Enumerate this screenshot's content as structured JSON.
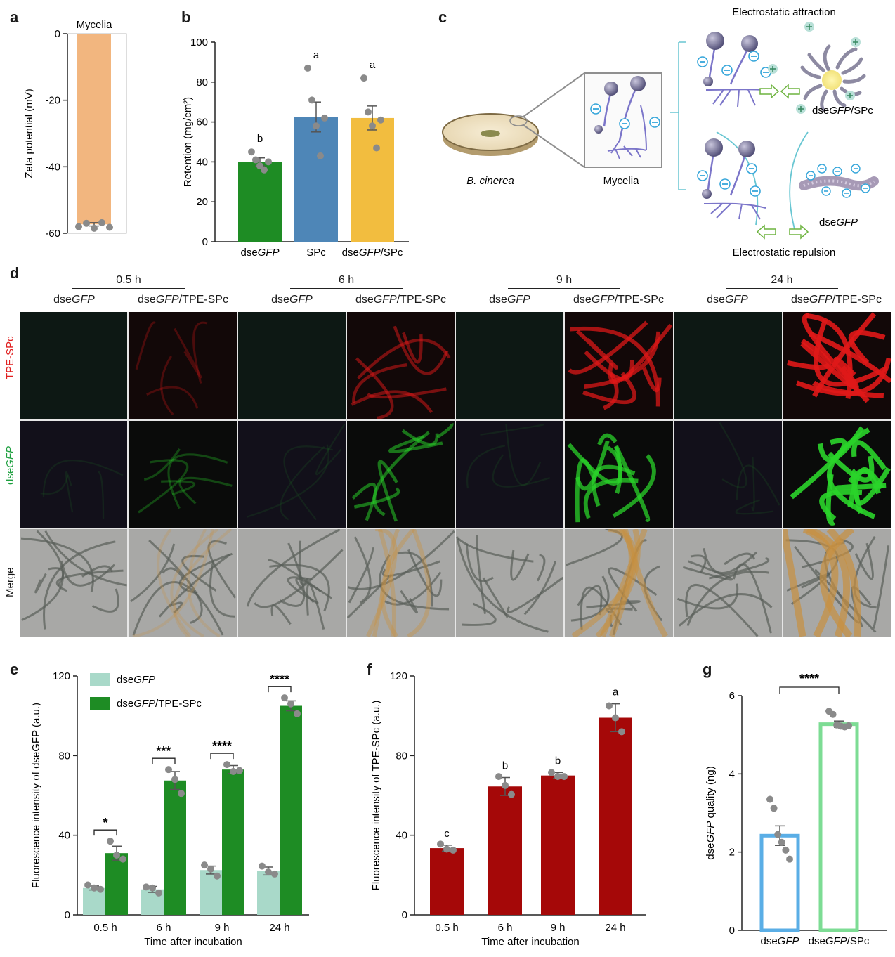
{
  "panels": {
    "a": "a",
    "b": "b",
    "c": "c",
    "d": "d",
    "e": "e",
    "f": "f",
    "g": "g"
  },
  "chart_data": [
    {
      "panel": "a",
      "type": "bar",
      "title": "Mycelia",
      "ylabel": "Zeta potential (mV)",
      "ylim": [
        -60,
        0
      ],
      "yticks": [
        "0",
        "-20",
        "-40",
        "-60"
      ],
      "values": [
        -57.3
      ],
      "points": [
        -58.0,
        -57.0,
        -58.5,
        -56.8,
        -58.2
      ],
      "error": 0.5,
      "color": "#f2b67f"
    },
    {
      "panel": "b",
      "type": "bar",
      "ylabel": "Retention (mg/cm²)",
      "ylim": [
        0,
        100
      ],
      "yticks": [
        "0",
        "20",
        "40",
        "60",
        "80",
        "100"
      ],
      "categories": [
        "dseGFP",
        "SPc",
        "dseGFP/SPc"
      ],
      "category_labels": [
        [
          "dse",
          "GFP",
          ""
        ],
        [
          "SPc",
          "",
          ""
        ],
        [
          "dse",
          "GFP",
          "/SPc"
        ]
      ],
      "values": [
        40,
        62.5,
        62
      ],
      "errors": [
        2,
        7.5,
        6
      ],
      "points": [
        [
          45,
          41,
          38,
          36,
          40
        ],
        [
          87,
          71,
          58,
          43,
          62
        ],
        [
          82,
          65,
          58,
          47,
          61
        ]
      ],
      "letters": [
        "b",
        "a",
        "a"
      ],
      "colors": [
        "#1e8c24",
        "#4e86b7",
        "#f2bd3f"
      ]
    },
    {
      "panel": "e",
      "type": "bar",
      "ylabel": "Fluorescence intensity of dseGFP (a.u.)",
      "xlabel": "Time after incubation",
      "ylim": [
        0,
        120
      ],
      "yticks": [
        "0",
        "40",
        "80",
        "120"
      ],
      "categories": [
        "0.5 h",
        "6 h",
        "9 h",
        "24 h"
      ],
      "legend": [
        [
          "dse",
          "GFP",
          ""
        ],
        [
          "dse",
          "GFP",
          "/TPE-SPc"
        ]
      ],
      "series": [
        {
          "values": [
            13.5,
            12.8,
            22.5,
            22
          ],
          "errors": [
            1,
            1.5,
            2,
            2
          ],
          "points": [
            [
              15,
              13.5,
              12.8
            ],
            [
              14,
              13.5,
              11
            ],
            [
              25,
              23,
              19.5
            ],
            [
              24.5,
              21.5,
              20.5
            ]
          ],
          "color": "#a9d9c9"
        },
        {
          "values": [
            31,
            67.5,
            73,
            105
          ],
          "errors": [
            3.5,
            4.5,
            2,
            2.5
          ],
          "points": [
            [
              37,
              30,
              28
            ],
            [
              73,
              68,
              61
            ],
            [
              75.5,
              72,
              72.5
            ],
            [
              109,
              106,
              101
            ]
          ],
          "color": "#1e8c24"
        }
      ],
      "significance": [
        "*",
        "***",
        "****",
        "****"
      ]
    },
    {
      "panel": "f",
      "type": "bar",
      "ylabel": "Fluorescence intensity of TPE-SPc (a.u.)",
      "xlabel": "Time after incubation",
      "ylim": [
        0,
        120
      ],
      "yticks": [
        "0",
        "40",
        "80",
        "120"
      ],
      "categories": [
        "0.5 h",
        "6 h",
        "9 h",
        "24 h"
      ],
      "values": [
        33.5,
        64.5,
        70,
        99
      ],
      "errors": [
        1.5,
        4.5,
        1.5,
        7
      ],
      "points": [
        [
          35.5,
          33,
          32.5
        ],
        [
          69.5,
          65,
          60.5
        ],
        [
          71.5,
          69.5,
          69.5
        ],
        [
          105,
          99,
          92
        ]
      ],
      "letters": [
        "c",
        "b",
        "b",
        "a"
      ],
      "color": "#a50808"
    },
    {
      "panel": "g",
      "type": "bar",
      "ylabel": "dseGFP quality (ng)",
      "ylim": [
        0,
        6
      ],
      "yticks": [
        "0",
        "2",
        "4",
        "6"
      ],
      "categories": [
        "dseGFP",
        "dseGFP/SPc"
      ],
      "category_labels": [
        [
          "dse",
          "GFP",
          ""
        ],
        [
          "dse",
          "GFP",
          "/SPc"
        ]
      ],
      "values": [
        2.42,
        5.27
      ],
      "errors": [
        0.25,
        0.08
      ],
      "points": [
        [
          3.35,
          3.12,
          2.45,
          2.25,
          2.05,
          1.82
        ],
        [
          5.6,
          5.52,
          5.25,
          5.22,
          5.2,
          5.23
        ]
      ],
      "colors": [
        "#5aaee6",
        "#7ddc94"
      ],
      "significance": "****"
    }
  ],
  "diagram_c": {
    "left_label": "B. cinerea",
    "mid_label": "Mycelia",
    "top_label": "Electrostatic attraction",
    "bottom_label": "Electrostatic repulsion",
    "complex_label": [
      "dse",
      "GFP",
      "/SPc"
    ],
    "rna_label": [
      "dse",
      "GFP",
      ""
    ]
  },
  "microscopy_d": {
    "times": [
      "0.5 h",
      "6 h",
      "9 h",
      "24 h"
    ],
    "columns": [
      [
        "dse",
        "GFP",
        ""
      ],
      [
        "dse",
        "GFP",
        "/TPE-SPc"
      ]
    ],
    "rows": [
      "TPE-SPc",
      "dseGFP",
      "Merge"
    ],
    "row_labels": [
      [
        "TPE-SPc",
        ""
      ],
      [
        "dse",
        "GFP"
      ],
      [
        "Merge",
        ""
      ]
    ]
  }
}
